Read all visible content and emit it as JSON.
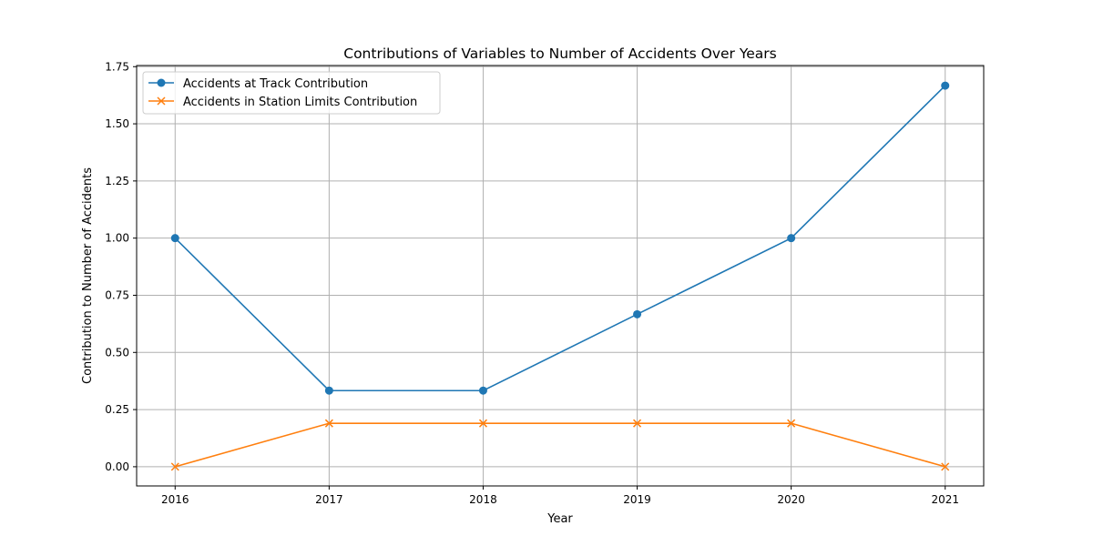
{
  "chart_data": {
    "type": "line",
    "title": "Contributions of Variables to Number of Accidents Over Years",
    "xlabel": "Year",
    "ylabel": "Contribution to Number of Accidents",
    "x": [
      2016,
      2017,
      2018,
      2019,
      2020,
      2021
    ],
    "x_tick_labels": [
      "2016",
      "2017",
      "2018",
      "2019",
      "2020",
      "2021"
    ],
    "xlim": [
      2015.75,
      2021.25
    ],
    "ylim": [
      -0.084,
      1.755
    ],
    "y_ticks": [
      0.0,
      0.25,
      0.5,
      0.75,
      1.0,
      1.25,
      1.5,
      1.75
    ],
    "y_tick_labels": [
      "0.00",
      "0.25",
      "0.50",
      "0.75",
      "1.00",
      "1.25",
      "1.50",
      "1.75"
    ],
    "grid": true,
    "legend_position": "top-left",
    "series": [
      {
        "name": "Accidents at Track Contribution",
        "values": [
          1.0,
          0.333,
          0.333,
          0.667,
          1.0,
          1.667
        ],
        "color": "#1f77b4",
        "marker": "circle"
      },
      {
        "name": "Accidents in Station Limits Contribution",
        "values": [
          0.0,
          0.19,
          0.19,
          0.19,
          0.19,
          0.0
        ],
        "color": "#ff7f0e",
        "marker": "x"
      }
    ]
  }
}
